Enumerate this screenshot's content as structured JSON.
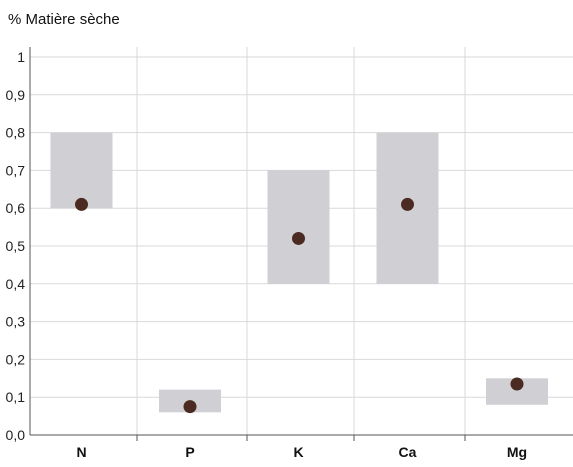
{
  "chart_data": {
    "type": "range_bar_with_points",
    "ylabel": "% Matière sèche",
    "xlabel": "",
    "ylim": [
      0,
      1
    ],
    "y_ticks": [
      "0,0",
      "0,1",
      "0,2",
      "0,3",
      "0,4",
      "0,5",
      "0,6",
      "0,7",
      "0,8",
      "0,9",
      "1"
    ],
    "y_tick_values": [
      0,
      0.1,
      0.2,
      0.3,
      0.4,
      0.5,
      0.6,
      0.7,
      0.8,
      0.9,
      1.0
    ],
    "grid": true,
    "categories": [
      "N",
      "P",
      "K",
      "Ca",
      "Mg"
    ],
    "ranges": [
      {
        "low": 0.6,
        "high": 0.8
      },
      {
        "low": 0.06,
        "high": 0.12
      },
      {
        "low": 0.4,
        "high": 0.7
      },
      {
        "low": 0.4,
        "high": 0.8
      },
      {
        "low": 0.08,
        "high": 0.15
      }
    ],
    "points": [
      0.61,
      0.075,
      0.52,
      0.61,
      0.135
    ],
    "colors": {
      "range_fill": "#cfcfd4",
      "point": "#4a2a21",
      "grid": "#d9d9d9",
      "axis": "#555555"
    }
  }
}
